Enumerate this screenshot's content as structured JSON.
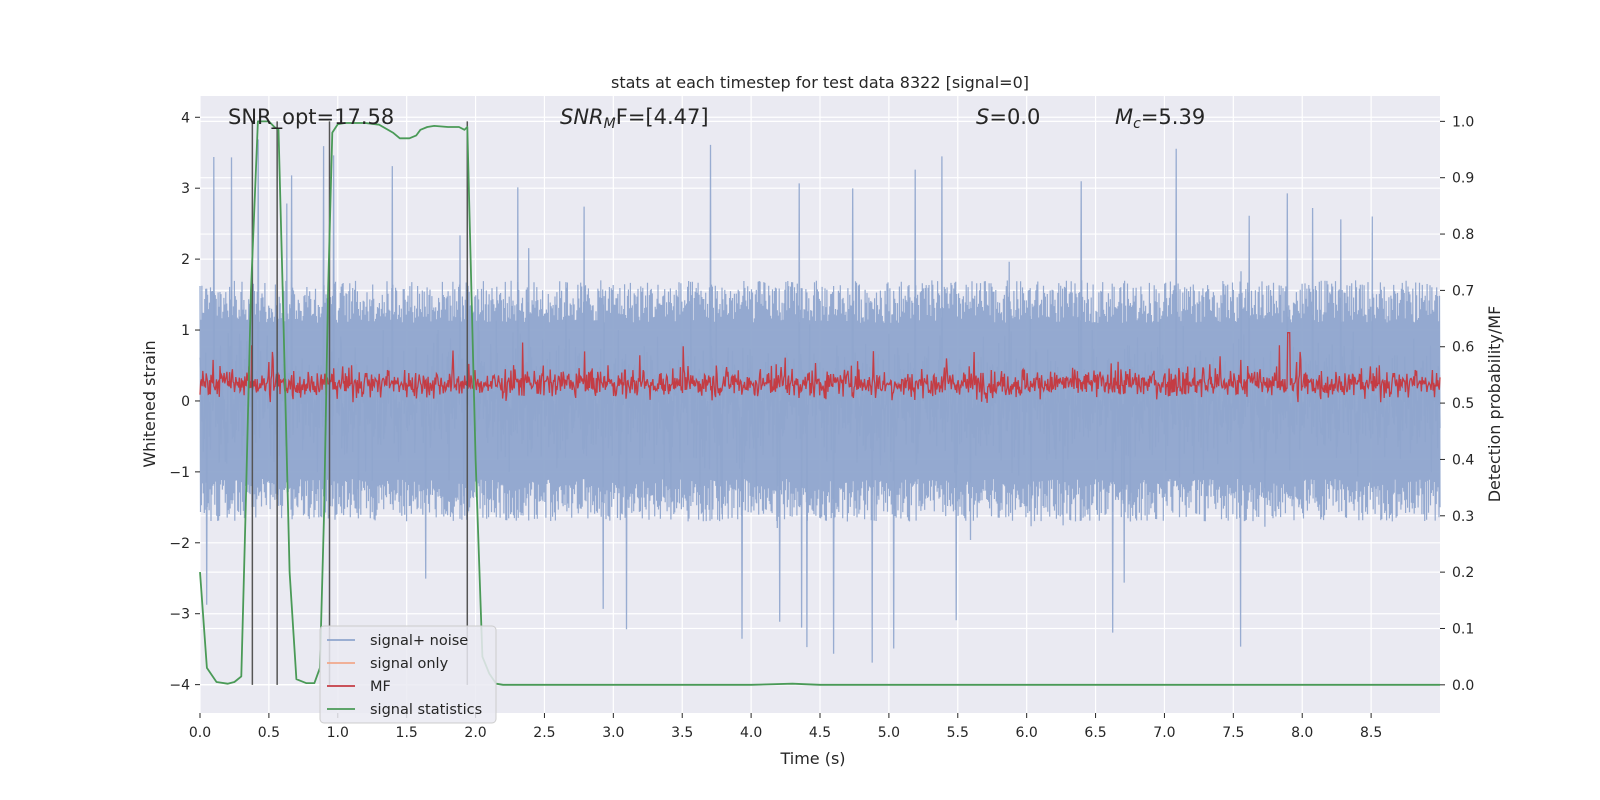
{
  "chart_data": {
    "type": "line",
    "title": "stats at each timestep for test data 8322 [signal=0]",
    "xlabel": "Time (s)",
    "ylabel_left": "Whitened strain",
    "ylabel_right": "Detection probability/MF",
    "xlim": [
      0.0,
      9.0
    ],
    "ylim_left": [
      -4.4,
      4.3
    ],
    "ylim_right": [
      -0.05,
      1.045
    ],
    "x_ticks": [
      "0.0",
      "0.5",
      "1.0",
      "1.5",
      "2.0",
      "2.5",
      "3.0",
      "3.5",
      "4.0",
      "4.5",
      "5.0",
      "5.5",
      "6.0",
      "6.5",
      "7.0",
      "7.5",
      "8.0",
      "8.5"
    ],
    "y_ticks_left": [
      "4",
      "3",
      "2",
      "1",
      "0",
      "−1",
      "−2",
      "−3",
      "−4"
    ],
    "y_ticks_right": [
      "1.0",
      "0.9",
      "0.8",
      "0.7",
      "0.6",
      "0.5",
      "0.4",
      "0.3",
      "0.2",
      "0.1",
      "0.0"
    ],
    "annotations": {
      "snr_opt": "SNR_opt=17.58",
      "snr_mf_label": "SNR",
      "snr_mf_sub": "M",
      "snr_mf_value": "F=[4.47]",
      "s_label": "S",
      "s_value": "=0.0",
      "mc_label": "M",
      "mc_sub": "c",
      "mc_value": "=5.39"
    },
    "series": [
      {
        "name": "signal+ noise",
        "color": "#8fa5cd",
        "axis": "left",
        "description": "whitened noise, amplitude about ±1.5 with spikes up to ±3.8"
      },
      {
        "name": "signal only",
        "color": "#f0a88b",
        "axis": "left",
        "values": []
      },
      {
        "name": "MF",
        "color": "#c43c44",
        "axis": "right",
        "description": "matched filter output fluctuating between 0.50 and 0.62"
      },
      {
        "name": "signal statistics",
        "color": "#4a9a57",
        "axis": "right",
        "x": [
          0.0,
          0.05,
          0.12,
          0.2,
          0.25,
          0.3,
          0.33,
          0.37,
          0.42,
          0.46,
          0.5,
          0.54,
          0.57,
          0.6,
          0.65,
          0.7,
          0.77,
          0.83,
          0.87,
          0.9,
          0.93,
          0.96,
          1.0,
          1.05,
          1.1,
          1.2,
          1.3,
          1.4,
          1.45,
          1.52,
          1.57,
          1.6,
          1.65,
          1.7,
          1.8,
          1.88,
          1.92,
          1.94,
          1.96,
          2.0,
          2.05,
          2.1,
          2.15,
          2.2,
          3.0,
          4.0,
          4.3,
          4.5,
          5.0,
          6.0,
          7.0,
          8.0,
          9.0
        ],
        "y": [
          0.2,
          0.03,
          0.005,
          0.002,
          0.005,
          0.015,
          0.3,
          0.7,
          1.0,
          1.0,
          1.0,
          0.99,
          0.985,
          0.7,
          0.2,
          0.01,
          0.003,
          0.003,
          0.03,
          0.3,
          0.7,
          0.98,
          0.995,
          0.997,
          0.997,
          0.997,
          0.994,
          0.98,
          0.97,
          0.97,
          0.975,
          0.985,
          0.99,
          0.992,
          0.99,
          0.99,
          0.985,
          0.99,
          0.8,
          0.4,
          0.05,
          0.02,
          0.002,
          0.0,
          0.0,
          0.0,
          0.002,
          0.0,
          0.0,
          0.0,
          0.0,
          0.0,
          0.0
        ]
      }
    ],
    "vertical_markers": [
      0.38,
      0.56,
      0.94,
      1.94
    ],
    "legend": {
      "placement": "lower-left",
      "items": [
        {
          "label": "signal+ noise",
          "color": "#8fa5cd"
        },
        {
          "label": "signal only",
          "color": "#f0a88b"
        },
        {
          "label": "MF",
          "color": "#c43c44"
        },
        {
          "label": "signal statistics",
          "color": "#4a9a57"
        }
      ]
    },
    "grid": true,
    "background": "#eaeaf2"
  }
}
